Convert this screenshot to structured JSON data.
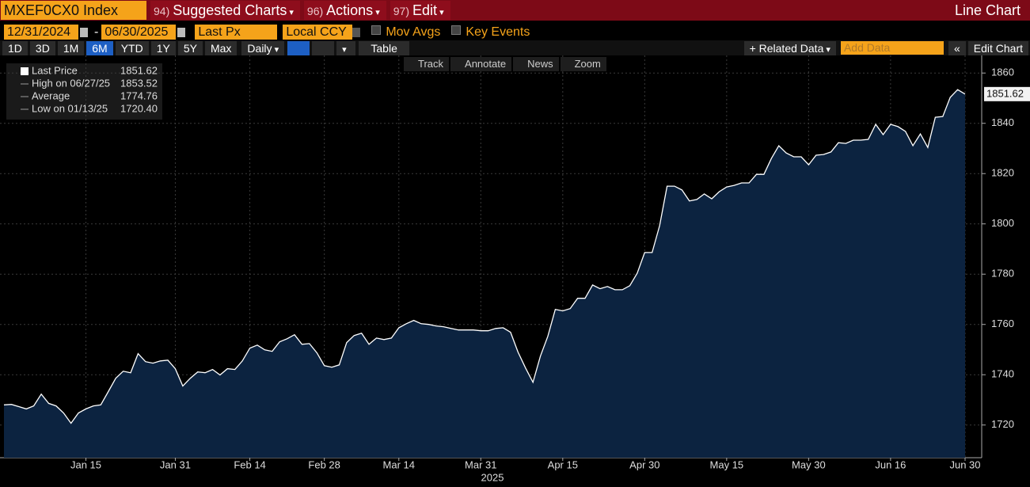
{
  "toolbar": {
    "ticker": "MXEF0CX0 Index",
    "menus": [
      {
        "number": "94)",
        "label": "Suggested Charts"
      },
      {
        "number": "96)",
        "label": "Actions"
      },
      {
        "number": "97)",
        "label": "Edit"
      }
    ],
    "chart_type": "Line Chart"
  },
  "settings": {
    "start_date": "12/31/2024",
    "separator": "-",
    "end_date": "06/30/2025",
    "field": "Last Px",
    "currency": "Local CCY",
    "options": [
      "Mov Avgs",
      "Key Events"
    ]
  },
  "range_bar": {
    "periods": [
      "1D",
      "3D",
      "1M",
      "6M",
      "YTD",
      "1Y",
      "5Y",
      "Max"
    ],
    "active_period": "6M",
    "frequency": "Daily",
    "table": "Table",
    "related": "+ Related Data",
    "add_data": "Add Data",
    "edit": "Edit Chart"
  },
  "chart_tools": [
    "Track",
    "Annotate",
    "News",
    "Zoom"
  ],
  "chart_data": {
    "type": "area",
    "stats": [
      {
        "label": "Last Price",
        "value": "1851.62"
      },
      {
        "label": "High on 06/27/25",
        "value": "1853.52"
      },
      {
        "label": "Average",
        "value": "1774.76"
      },
      {
        "label": "Low on 01/13/25",
        "value": "1720.40"
      }
    ],
    "x_label": "2025",
    "x": [
      "2024-12-31",
      "2025-01-01",
      "2025-01-02",
      "2025-01-03",
      "2025-01-06",
      "2025-01-07",
      "2025-01-08",
      "2025-01-09",
      "2025-01-10",
      "2025-01-13",
      "2025-01-14",
      "2025-01-15",
      "2025-01-16",
      "2025-01-17",
      "2025-01-20",
      "2025-01-21",
      "2025-01-22",
      "2025-01-23",
      "2025-01-24",
      "2025-01-27",
      "2025-01-28",
      "2025-01-29",
      "2025-01-30",
      "2025-01-31",
      "2025-02-03",
      "2025-02-04",
      "2025-02-05",
      "2025-02-06",
      "2025-02-07",
      "2025-02-10",
      "2025-02-11",
      "2025-02-12",
      "2025-02-13",
      "2025-02-14",
      "2025-02-17",
      "2025-02-18",
      "2025-02-19",
      "2025-02-20",
      "2025-02-21",
      "2025-02-24",
      "2025-02-25",
      "2025-02-26",
      "2025-02-27",
      "2025-02-28",
      "2025-03-03",
      "2025-03-04",
      "2025-03-05",
      "2025-03-06",
      "2025-03-07",
      "2025-03-10",
      "2025-03-11",
      "2025-03-12",
      "2025-03-13",
      "2025-03-14",
      "2025-03-17",
      "2025-03-18",
      "2025-03-19",
      "2025-03-20",
      "2025-03-21",
      "2025-03-24",
      "2025-03-25",
      "2025-03-26",
      "2025-03-27",
      "2025-03-28",
      "2025-03-31",
      "2025-04-01",
      "2025-04-02",
      "2025-04-03",
      "2025-04-04",
      "2025-04-07",
      "2025-04-08",
      "2025-04-09",
      "2025-04-10",
      "2025-04-11",
      "2025-04-14",
      "2025-04-15",
      "2025-04-16",
      "2025-04-17",
      "2025-04-18",
      "2025-04-21",
      "2025-04-22",
      "2025-04-23",
      "2025-04-24",
      "2025-04-25",
      "2025-04-28",
      "2025-04-29",
      "2025-04-30",
      "2025-05-01",
      "2025-05-02",
      "2025-05-05",
      "2025-05-06",
      "2025-05-07",
      "2025-05-08",
      "2025-05-09",
      "2025-05-12",
      "2025-05-13",
      "2025-05-14",
      "2025-05-15",
      "2025-05-16",
      "2025-05-19",
      "2025-05-20",
      "2025-05-21",
      "2025-05-22",
      "2025-05-23",
      "2025-05-26",
      "2025-05-27",
      "2025-05-28",
      "2025-05-29",
      "2025-05-30",
      "2025-06-02",
      "2025-06-03",
      "2025-06-04",
      "2025-06-05",
      "2025-06-06",
      "2025-06-09",
      "2025-06-10",
      "2025-06-11",
      "2025-06-12",
      "2025-06-13",
      "2025-06-16",
      "2025-06-17",
      "2025-06-18",
      "2025-06-19",
      "2025-06-20",
      "2025-06-23",
      "2025-06-24",
      "2025-06-25",
      "2025-06-26",
      "2025-06-27",
      "2025-06-30"
    ],
    "series": [
      {
        "color": "#ffffff",
        "fill": "#0c2340",
        "values": [
          1728.0,
          1728.2,
          1727.3,
          1726.4,
          1727.6,
          1732.3,
          1728.6,
          1727.6,
          1724.8,
          1720.7,
          1724.8,
          1726.4,
          1727.6,
          1728.0,
          1733.3,
          1738.6,
          1741.4,
          1740.8,
          1748.4,
          1745.2,
          1744.6,
          1745.5,
          1745.8,
          1742.4,
          1735.5,
          1738.6,
          1741.1,
          1740.8,
          1742.1,
          1739.9,
          1742.4,
          1742.1,
          1745.5,
          1750.6,
          1751.8,
          1749.9,
          1749.3,
          1753.1,
          1754.3,
          1755.9,
          1752.1,
          1752.4,
          1748.7,
          1743.6,
          1743.0,
          1743.9,
          1752.8,
          1755.6,
          1756.5,
          1752.1,
          1754.6,
          1754.0,
          1754.6,
          1758.7,
          1760.3,
          1761.6,
          1760.3,
          1760.0,
          1759.4,
          1759.1,
          1758.4,
          1757.8,
          1757.8,
          1757.8,
          1757.5,
          1757.5,
          1758.4,
          1758.7,
          1756.9,
          1749.0,
          1742.7,
          1737.0,
          1747.4,
          1755.3,
          1766.0,
          1765.4,
          1766.3,
          1770.4,
          1770.4,
          1775.7,
          1774.2,
          1775.1,
          1773.8,
          1773.8,
          1775.4,
          1780.4,
          1788.6,
          1788.6,
          1799.3,
          1815.0,
          1815.0,
          1813.5,
          1809.1,
          1809.7,
          1811.9,
          1810.0,
          1812.8,
          1814.7,
          1815.3,
          1816.3,
          1816.3,
          1819.7,
          1819.7,
          1826.0,
          1831.1,
          1828.2,
          1826.7,
          1826.7,
          1823.5,
          1827.3,
          1827.6,
          1828.6,
          1832.3,
          1832.0,
          1833.3,
          1833.3,
          1833.6,
          1839.6,
          1835.5,
          1839.6,
          1838.7,
          1836.8,
          1831.1,
          1835.8,
          1830.4,
          1842.4,
          1842.7,
          1850.3,
          1853.4,
          1851.62
        ]
      }
    ],
    "xticks": [
      {
        "value": "2025-01-15",
        "label": "Jan 15"
      },
      {
        "value": "2025-01-31",
        "label": "Jan 31"
      },
      {
        "value": "2025-02-14",
        "label": "Feb 14"
      },
      {
        "value": "2025-02-28",
        "label": "Feb 28"
      },
      {
        "value": "2025-03-14",
        "label": "Mar 14"
      },
      {
        "value": "2025-03-31",
        "label": "Mar 31"
      },
      {
        "value": "2025-04-15",
        "label": "Apr 15"
      },
      {
        "value": "2025-04-30",
        "label": "Apr 30"
      },
      {
        "value": "2025-05-15",
        "label": "May 15"
      },
      {
        "value": "2025-05-30",
        "label": "May 30"
      },
      {
        "value": "2025-06-16",
        "label": "Jun 16"
      },
      {
        "value": "2025-06-30",
        "label": "Jun 30"
      }
    ],
    "ylim": [
      1707,
      1867
    ],
    "yticks": [
      1720,
      1740,
      1760,
      1780,
      1800,
      1820,
      1840,
      1860
    ],
    "grid": true
  }
}
